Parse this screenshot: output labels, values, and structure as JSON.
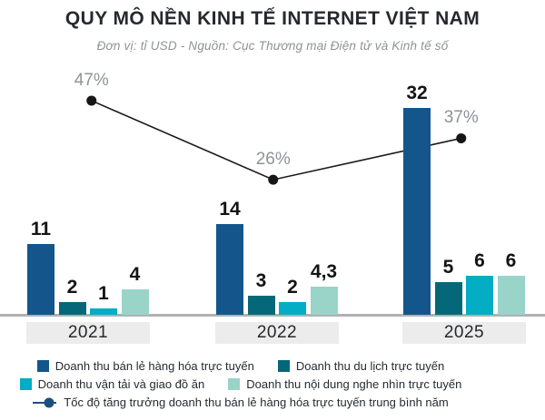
{
  "title": "QUY MÔ NỀN KINH TẾ INTERNET VIỆT NAM",
  "subtitle": "Đơn vị: tỉ USD  -  Nguồn: Cục Thương mại Điện tử và Kinh tế số",
  "colors": {
    "retail": "#14568c",
    "travel": "#056879",
    "transport": "#03adc4",
    "media": "#9ad3c8",
    "growth_line": "#1a1a1a",
    "growth_dot": "#161616",
    "growth_legend": "#1b4f7e",
    "pct_label": "#8e9398",
    "axis": "#b1b1b1",
    "year_box_bg": "#ececec"
  },
  "chart_data": {
    "type": "bar+line",
    "title": "QUY MÔ NỀN KINH TẾ INTERNET VIỆT NAM",
    "unit": "tỉ USD",
    "source": "Cục Thương mại Điện tử và Kinh tế số",
    "categories": [
      "2021",
      "2022",
      "2025"
    ],
    "series": [
      {
        "name": "Doanh thu bán lẻ hàng hóa trực tuyến",
        "color_key": "retail",
        "values": [
          11,
          14,
          32
        ],
        "labels": [
          "11",
          "14",
          "32"
        ]
      },
      {
        "name": "Doanh thu du lịch trực tuyến",
        "color_key": "travel",
        "values": [
          2,
          3,
          5
        ],
        "labels": [
          "2",
          "3",
          "5"
        ]
      },
      {
        "name": "Doanh thu vận tải và giao đồ ăn",
        "color_key": "transport",
        "values": [
          1,
          2,
          6
        ],
        "labels": [
          "1",
          "2",
          "6"
        ]
      },
      {
        "name": "Doanh thu nội dung nghe nhìn trực tuyến",
        "color_key": "media",
        "values": [
          4,
          4.3,
          6
        ],
        "labels": [
          "4",
          "4,3",
          "6"
        ]
      }
    ],
    "line_series": {
      "name": "Tốc độ tăng trưởng doanh thu bán lẻ hàng hóa trực tuyến trung bình năm",
      "values": [
        47,
        26,
        37
      ],
      "labels": [
        "47%",
        "26%",
        "37%"
      ]
    },
    "legend_position": "bottom",
    "grid": false
  },
  "legend": {
    "items": [
      {
        "label": "Doanh thu bán lẻ hàng hóa trực tuyến",
        "color_key": "retail"
      },
      {
        "label": "Doanh thu du lịch trực tuyến",
        "color_key": "travel"
      },
      {
        "label": "Doanh thu vận tải và giao đồ ăn",
        "color_key": "transport"
      },
      {
        "label": "Doanh thu nội dung nghe nhìn trực tuyến",
        "color_key": "media"
      },
      {
        "label": "Tốc độ tăng trưởng doanh thu bán lẻ hàng hóa trực tuyến trung bình năm",
        "color_key": "growth_legend",
        "marker": "line-dot"
      }
    ]
  }
}
